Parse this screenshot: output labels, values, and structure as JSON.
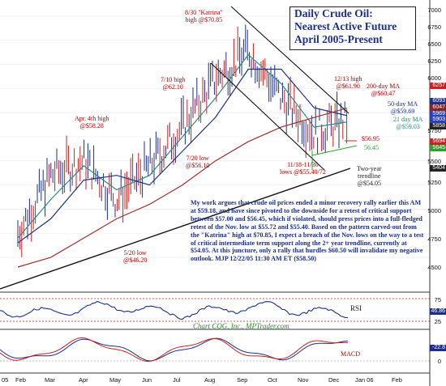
{
  "title_box": {
    "line1": "Daily Crude Oil:",
    "line2": "Nearest Active Future",
    "line3": "April 2005-Present"
  },
  "annotations": {
    "katrina": [
      "8/30 \"Katrina\"",
      "high @$70.85"
    ],
    "jul_high": [
      "7/10 high",
      "@62.10"
    ],
    "apr_high": [
      "Apr. 4th high",
      "@$58.28"
    ],
    "jul_low": [
      "7/20 low",
      "@$56.10"
    ],
    "may_low": [
      "5/20 low",
      "@$46.20"
    ],
    "nov_lows": [
      "11/18-11/30",
      "lows @$55.40/72"
    ],
    "dec_high": [
      "12/13 high",
      "@$61.90"
    ],
    "ma200": [
      "200-day MA",
      "@$60.47"
    ],
    "ma50": [
      "50-day MA",
      "@$59.69"
    ],
    "ma21": [
      "21 day MA",
      "@$59.03"
    ],
    "support1": "$56.95",
    "support2": "56.45",
    "trendline": [
      "Two-year",
      "trendline",
      "@$54.05"
    ]
  },
  "commentary": "My work argues that crude oil prices ended a minor recovery rally earlier this AM at $59.18, and have since pivoted to the downside for a retest of critical support between $57.00 and $56.45, which if violated, should press prices into a full-fledged retest of the Nov. low at $55.72 and $55.40. Based on the pattern carved-out from the \"Katrina\" high at $70.85, I expect a breach of the Nov. lows on the way to a test of critical intermediate term support along the 2+ year trendline, currently at $54.05. At this juncture, only a rally that hurdles $60.50 will invalidate my negative outlook. MJP 12/22/05 11:30 AM ET ($58.50)",
  "credit": "Chart CQG, Inc., MPTrader.com",
  "rsi_label": "RSI",
  "macd_label": "MACD",
  "y_axis": [
    "7000",
    "6750",
    "6500",
    "6250",
    "6000",
    "5750",
    "5500",
    "5250",
    "5000",
    "4750",
    "4500"
  ],
  "rsi_axis": [
    "75",
    "25"
  ],
  "macd_axis": [
    "0"
  ],
  "price_tags": [
    {
      "text": "6257",
      "color": "#cc2020"
    },
    {
      "text": "6093",
      "color": "#1c2f8c"
    },
    {
      "text": "6047",
      "color": "#8a2020"
    },
    {
      "text": "5969",
      "color": "#2a3fbf"
    },
    {
      "text": "5903",
      "color": "#2a3fbf"
    },
    {
      "text": "5858",
      "color": "#222222"
    },
    {
      "text": "5694",
      "color": "#cc2020"
    },
    {
      "text": "5645",
      "color": "#2ea02e"
    },
    {
      "text": "5404",
      "color": "#222222"
    }
  ],
  "rsi_tag": "46.86",
  "macd_tag": "-22.8",
  "x_axis": [
    "05",
    "Feb",
    "Mar",
    "Apr",
    "May",
    "Jun",
    "Jul",
    "Aug",
    "Sep",
    "Oct",
    "Nov",
    "Dec",
    "Jan 06",
    "Feb"
  ],
  "chart_data": {
    "type": "bar",
    "title": "Daily Crude Oil: Nearest Active Future",
    "subtitle": "April 2005-Present",
    "ylim": [
      44,
      71
    ],
    "x": [
      "Feb",
      "Mar",
      "Apr",
      "May",
      "Jun",
      "Jul",
      "Aug",
      "Sep",
      "Oct",
      "Nov",
      "Dec"
    ],
    "series": [
      {
        "values": [
          47.5,
          53.5,
          55.0,
          51.0,
          54.5,
          58.5,
          63.5,
          66.5,
          61.5,
          58.0,
          59.2
        ]
      },
      {
        "name": "21 day MA",
        "values": [
          47.0,
          51.0,
          54.5,
          52.0,
          53.5,
          57.5,
          61.5,
          66.0,
          63.0,
          58.5,
          59.03
        ]
      },
      {
        "name": "50-day MA",
        "values": [
          46.5,
          49.0,
          53.0,
          53.5,
          52.5,
          56.0,
          59.5,
          64.5,
          64.5,
          60.5,
          59.69
        ]
      },
      {
        "name": "200-day MA",
        "values": [
          44.0,
          45.0,
          47.0,
          49.0,
          50.5,
          52.5,
          55.0,
          57.0,
          58.5,
          59.5,
          60.47
        ]
      }
    ],
    "events": [
      {
        "label": "Apr. 4th high",
        "value": 58.28
      },
      {
        "label": "5/20 low",
        "value": 46.2
      },
      {
        "label": "7/10 high",
        "value": 62.1
      },
      {
        "label": "7/20 low",
        "value": 56.1
      },
      {
        "label": "8/30 Katrina high",
        "value": 70.85
      },
      {
        "label": "11/18-11/30 lows",
        "value": 55.4
      },
      {
        "label": "12/13 high",
        "value": 61.9
      }
    ]
  }
}
